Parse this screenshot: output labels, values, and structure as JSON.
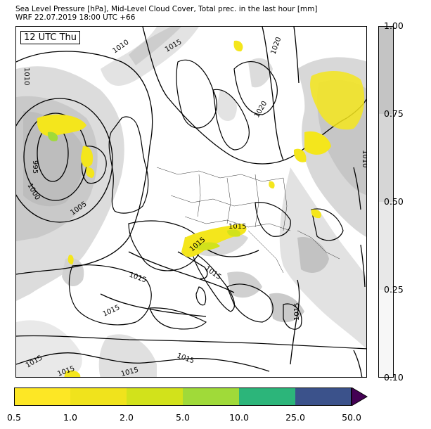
{
  "title_line1": "Sea Level Pressure [hPa], Mid-Level Cloud Cover, Total prec. in the last hour [mm]",
  "title_line2": "WRF 22.07.2019 18:00 UTC +66",
  "time_label": "12 UTC Thu",
  "isobar_labels": [
    "1010",
    "1010",
    "1015",
    "1020",
    "1020",
    "995",
    "1000",
    "1005",
    "1015",
    "1015",
    "1015",
    "1015",
    "1015",
    "1015",
    "1015",
    "1015",
    "1010",
    "1015",
    "1015"
  ],
  "cloud_colorbar": {
    "ticks": [
      "0.10",
      "0.25",
      "0.50",
      "0.75",
      "1.00"
    ],
    "colors": [
      "#f7f7f7",
      "#e8e8e8",
      "#d6d6d6",
      "#c4c4c4"
    ]
  },
  "precip_colorbar": {
    "ticks": [
      "0.5",
      "1.0",
      "2.0",
      "5.0",
      "10.0",
      "25.0",
      "50.0"
    ],
    "colors": [
      "#fde725",
      "#f0e31c",
      "#d2e21b",
      "#a0da39",
      "#2cb57a",
      "#3b528b",
      "#440154"
    ]
  }
}
